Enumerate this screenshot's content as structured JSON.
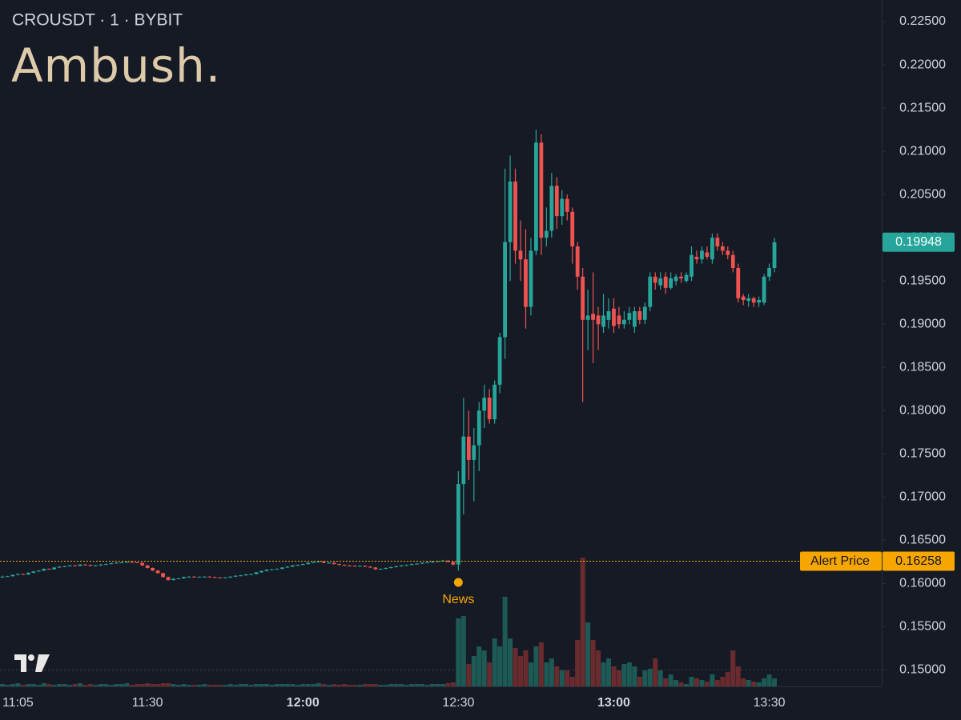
{
  "chart_data": {
    "type": "candlestick",
    "title": "CROUSDT · 1 · BYBIT",
    "subtitle": "Ambush.",
    "up_color": "#26a69a",
    "down_color": "#ef5350",
    "up_volume_color": "#1d5a56",
    "down_volume_color": "#6a2b2f",
    "ylim": [
      0.1475,
      0.2275
    ],
    "yticks": [
      {
        "value": 0.15,
        "label": "0.15000"
      },
      {
        "value": 0.155,
        "label": "0.15500"
      },
      {
        "value": 0.16,
        "label": "0.16000"
      },
      {
        "value": 0.165,
        "label": "0.16500"
      },
      {
        "value": 0.17,
        "label": "0.17000"
      },
      {
        "value": 0.175,
        "label": "0.17500"
      },
      {
        "value": 0.18,
        "label": "0.18000"
      },
      {
        "value": 0.185,
        "label": "0.18500"
      },
      {
        "value": 0.19,
        "label": "0.19000"
      },
      {
        "value": 0.195,
        "label": "0.19500"
      },
      {
        "value": 0.2,
        "label": "0.20000"
      },
      {
        "value": 0.205,
        "label": "0.20500"
      },
      {
        "value": 0.21,
        "label": "0.21000"
      },
      {
        "value": 0.215,
        "label": "0.21500"
      },
      {
        "value": 0.22,
        "label": "0.22000"
      },
      {
        "value": 0.225,
        "label": "0.22500"
      }
    ],
    "xticks": [
      "11:05",
      "11:30",
      "12:00",
      "12:30",
      "13:00",
      "13:30"
    ],
    "alert": {
      "label": "Alert Price",
      "value": 0.16258,
      "color": "#f7a600"
    },
    "news": {
      "label": "News",
      "x": "12:30",
      "color": "#f7a600"
    },
    "x": [
      "11:02",
      "11:03",
      "11:04",
      "11:05",
      "11:06",
      "11:07",
      "11:08",
      "11:09",
      "11:10",
      "11:11",
      "11:12",
      "11:13",
      "11:14",
      "11:15",
      "11:16",
      "11:17",
      "11:18",
      "11:19",
      "11:20",
      "11:21",
      "11:22",
      "11:23",
      "11:24",
      "11:25",
      "11:26",
      "11:27",
      "11:28",
      "11:29",
      "11:30",
      "11:31",
      "11:32",
      "11:33",
      "11:34",
      "11:35",
      "11:36",
      "11:37",
      "11:38",
      "11:39",
      "11:40",
      "11:41",
      "11:42",
      "11:43",
      "11:44",
      "11:45",
      "11:46",
      "11:47",
      "11:48",
      "11:49",
      "11:50",
      "11:51",
      "11:52",
      "11:53",
      "11:54",
      "11:55",
      "11:56",
      "11:57",
      "11:58",
      "11:59",
      "12:00",
      "12:01",
      "12:02",
      "12:03",
      "12:04",
      "12:05",
      "12:06",
      "12:07",
      "12:08",
      "12:09",
      "12:10",
      "12:11",
      "12:12",
      "12:13",
      "12:14",
      "12:15",
      "12:16",
      "12:17",
      "12:18",
      "12:19",
      "12:20",
      "12:21",
      "12:22",
      "12:23",
      "12:24",
      "12:25",
      "12:26",
      "12:27",
      "12:28",
      "12:29",
      "12:30",
      "12:31",
      "12:32",
      "12:33",
      "12:34",
      "12:35",
      "12:36",
      "12:37",
      "12:38",
      "12:39",
      "12:40",
      "12:41",
      "12:42",
      "12:43",
      "12:44",
      "12:45",
      "12:46",
      "12:47",
      "12:48",
      "12:49",
      "12:50",
      "12:51",
      "12:52",
      "12:53",
      "12:54",
      "12:55",
      "12:56",
      "12:57",
      "12:58",
      "12:59",
      "13:00",
      "13:01",
      "13:02",
      "13:03",
      "13:04",
      "13:05",
      "13:06",
      "13:07",
      "13:08",
      "13:09",
      "13:10",
      "13:11",
      "13:12",
      "13:13",
      "13:14",
      "13:15",
      "13:16",
      "13:17",
      "13:18",
      "13:19",
      "13:20",
      "13:21",
      "13:22",
      "13:23",
      "13:24",
      "13:25",
      "13:26",
      "13:27",
      "13:28",
      "13:29",
      "13:30",
      "13:31"
    ],
    "ohlc": [
      [
        0.16075,
        0.1609,
        0.1607,
        0.1608
      ],
      [
        0.1608,
        0.1609,
        0.16075,
        0.16085
      ],
      [
        0.16085,
        0.16105,
        0.1608,
        0.161
      ],
      [
        0.161,
        0.16115,
        0.16095,
        0.1611
      ],
      [
        0.1611,
        0.16115,
        0.161,
        0.16105
      ],
      [
        0.16105,
        0.1613,
        0.161,
        0.16125
      ],
      [
        0.16125,
        0.16145,
        0.1612,
        0.1614
      ],
      [
        0.1614,
        0.16155,
        0.16135,
        0.1615
      ],
      [
        0.1615,
        0.16175,
        0.16145,
        0.1617
      ],
      [
        0.1617,
        0.16175,
        0.1616,
        0.16165
      ],
      [
        0.16165,
        0.1619,
        0.1616,
        0.16185
      ],
      [
        0.16185,
        0.162,
        0.1618,
        0.16195
      ],
      [
        0.16195,
        0.16205,
        0.1619,
        0.162
      ],
      [
        0.162,
        0.16215,
        0.16195,
        0.1621
      ],
      [
        0.1621,
        0.16215,
        0.162,
        0.16205
      ],
      [
        0.16205,
        0.16225,
        0.162,
        0.1622
      ],
      [
        0.1622,
        0.16225,
        0.1621,
        0.16215
      ],
      [
        0.16215,
        0.1622,
        0.162,
        0.16205
      ],
      [
        0.16205,
        0.16215,
        0.162,
        0.1621
      ],
      [
        0.1621,
        0.16225,
        0.16205,
        0.1622
      ],
      [
        0.1622,
        0.1623,
        0.16215,
        0.16225
      ],
      [
        0.16225,
        0.1624,
        0.1622,
        0.16235
      ],
      [
        0.16235,
        0.16245,
        0.1623,
        0.1624
      ],
      [
        0.1624,
        0.1625,
        0.16235,
        0.16245
      ],
      [
        0.16245,
        0.16255,
        0.1624,
        0.1625
      ],
      [
        0.1625,
        0.16255,
        0.1624,
        0.16245
      ],
      [
        0.16245,
        0.1625,
        0.16235,
        0.1624
      ],
      [
        0.1624,
        0.16245,
        0.16205,
        0.1621
      ],
      [
        0.1621,
        0.16215,
        0.16175,
        0.1618
      ],
      [
        0.1618,
        0.16185,
        0.16145,
        0.1615
      ],
      [
        0.1615,
        0.16155,
        0.16115,
        0.1612
      ],
      [
        0.1612,
        0.16125,
        0.1607,
        0.16075
      ],
      [
        0.16075,
        0.1608,
        0.16035,
        0.1604
      ],
      [
        0.1604,
        0.1606,
        0.16035,
        0.16055
      ],
      [
        0.16055,
        0.16065,
        0.1605,
        0.1606
      ],
      [
        0.1606,
        0.1608,
        0.16055,
        0.16075
      ],
      [
        0.16075,
        0.16085,
        0.1607,
        0.1608
      ],
      [
        0.1608,
        0.16085,
        0.1607,
        0.16075
      ],
      [
        0.16075,
        0.16083,
        0.1607,
        0.16078
      ],
      [
        0.16078,
        0.16085,
        0.16073,
        0.1608
      ],
      [
        0.1608,
        0.16085,
        0.1607,
        0.16075
      ],
      [
        0.16075,
        0.1608,
        0.16065,
        0.1607
      ],
      [
        0.1607,
        0.16075,
        0.16063,
        0.16068
      ],
      [
        0.16068,
        0.16075,
        0.16063,
        0.1607
      ],
      [
        0.1607,
        0.16085,
        0.16065,
        0.1608
      ],
      [
        0.1608,
        0.16095,
        0.16075,
        0.1609
      ],
      [
        0.1609,
        0.161,
        0.16085,
        0.16095
      ],
      [
        0.16095,
        0.1611,
        0.1609,
        0.16105
      ],
      [
        0.16105,
        0.16115,
        0.161,
        0.1611
      ],
      [
        0.1611,
        0.16135,
        0.16105,
        0.1613
      ],
      [
        0.1613,
        0.1615,
        0.16125,
        0.16145
      ],
      [
        0.16145,
        0.16165,
        0.1614,
        0.1616
      ],
      [
        0.1616,
        0.1617,
        0.16155,
        0.16165
      ],
      [
        0.16165,
        0.16175,
        0.1616,
        0.1617
      ],
      [
        0.1617,
        0.1619,
        0.16165,
        0.16185
      ],
      [
        0.16185,
        0.162,
        0.1618,
        0.16195
      ],
      [
        0.16195,
        0.16215,
        0.1619,
        0.1621
      ],
      [
        0.1621,
        0.1622,
        0.16205,
        0.16215
      ],
      [
        0.16215,
        0.1623,
        0.1621,
        0.16225
      ],
      [
        0.16225,
        0.16245,
        0.1622,
        0.1624
      ],
      [
        0.1624,
        0.16255,
        0.16235,
        0.1625
      ],
      [
        0.1625,
        0.16265,
        0.16245,
        0.16255
      ],
      [
        0.16255,
        0.1626,
        0.16235,
        0.1624
      ],
      [
        0.1624,
        0.1625,
        0.16235,
        0.1624
      ],
      [
        0.1624,
        0.16245,
        0.1622,
        0.16225
      ],
      [
        0.16225,
        0.1623,
        0.1621,
        0.16215
      ],
      [
        0.16215,
        0.1622,
        0.16205,
        0.1621
      ],
      [
        0.1621,
        0.16215,
        0.162,
        0.16205
      ],
      [
        0.16205,
        0.1621,
        0.16195,
        0.162
      ],
      [
        0.162,
        0.1621,
        0.16195,
        0.16205
      ],
      [
        0.16205,
        0.1621,
        0.1619,
        0.16195
      ],
      [
        0.16195,
        0.162,
        0.1618,
        0.16185
      ],
      [
        0.16185,
        0.1619,
        0.1616,
        0.16165
      ],
      [
        0.16165,
        0.16175,
        0.1616,
        0.1617
      ],
      [
        0.1617,
        0.16185,
        0.16165,
        0.1618
      ],
      [
        0.1618,
        0.16195,
        0.16175,
        0.1619
      ],
      [
        0.1619,
        0.16205,
        0.16185,
        0.162
      ],
      [
        0.162,
        0.16215,
        0.16195,
        0.1621
      ],
      [
        0.1621,
        0.1622,
        0.16205,
        0.16215
      ],
      [
        0.16215,
        0.1623,
        0.1621,
        0.16225
      ],
      [
        0.16225,
        0.16235,
        0.1622,
        0.1623
      ],
      [
        0.1623,
        0.16245,
        0.16225,
        0.1624
      ],
      [
        0.1624,
        0.1625,
        0.16235,
        0.16245
      ],
      [
        0.16245,
        0.1626,
        0.1624,
        0.16255
      ],
      [
        0.16255,
        0.16265,
        0.1625,
        0.1626
      ],
      [
        0.1626,
        0.16275,
        0.16255,
        0.16265
      ],
      [
        0.16265,
        0.1627,
        0.16245,
        0.1625
      ],
      [
        0.1625,
        0.16255,
        0.1621,
        0.1622
      ],
      [
        0.1622,
        0.173,
        0.1615,
        0.1715
      ],
      [
        0.1715,
        0.1815,
        0.168,
        0.177
      ],
      [
        0.177,
        0.18,
        0.172,
        0.1743
      ],
      [
        0.1743,
        0.178,
        0.1695,
        0.176
      ],
      [
        0.176,
        0.181,
        0.173,
        0.18
      ],
      [
        0.18,
        0.183,
        0.178,
        0.1815
      ],
      [
        0.1815,
        0.1825,
        0.1785,
        0.179
      ],
      [
        0.179,
        0.1835,
        0.1785,
        0.183
      ],
      [
        0.183,
        0.189,
        0.182,
        0.1885
      ],
      [
        0.1885,
        0.208,
        0.186,
        0.1995
      ],
      [
        0.1995,
        0.2095,
        0.195,
        0.2065
      ],
      [
        0.2065,
        0.208,
        0.197,
        0.1985
      ],
      [
        0.1985,
        0.202,
        0.195,
        0.1975
      ],
      [
        0.1975,
        0.201,
        0.1895,
        0.192
      ],
      [
        0.192,
        0.2,
        0.191,
        0.1985
      ],
      [
        0.1985,
        0.2125,
        0.198,
        0.211
      ],
      [
        0.211,
        0.212,
        0.198,
        0.2
      ],
      [
        0.2,
        0.2035,
        0.199,
        0.2008
      ],
      [
        0.2008,
        0.2075,
        0.2,
        0.206
      ],
      [
        0.206,
        0.207,
        0.201,
        0.2025
      ],
      [
        0.2025,
        0.2055,
        0.2015,
        0.2045
      ],
      [
        0.2045,
        0.205,
        0.202,
        0.203
      ],
      [
        0.203,
        0.2035,
        0.197,
        0.199
      ],
      [
        0.199,
        0.1995,
        0.194,
        0.1955
      ],
      [
        0.1955,
        0.1965,
        0.181,
        0.1905
      ],
      [
        0.1905,
        0.194,
        0.187,
        0.191
      ],
      [
        0.1912,
        0.196,
        0.1855,
        0.1905
      ],
      [
        0.191,
        0.192,
        0.187,
        0.19
      ],
      [
        0.1897,
        0.1935,
        0.189,
        0.191
      ],
      [
        0.1905,
        0.193,
        0.1895,
        0.1915
      ],
      [
        0.1918,
        0.193,
        0.189,
        0.1898
      ],
      [
        0.191,
        0.192,
        0.1895,
        0.19
      ],
      [
        0.19,
        0.1915,
        0.1895,
        0.1905
      ],
      [
        0.1905,
        0.192,
        0.19,
        0.1913
      ],
      [
        0.1897,
        0.192,
        0.189,
        0.1915
      ],
      [
        0.1915,
        0.192,
        0.19,
        0.1905
      ],
      [
        0.1905,
        0.1925,
        0.19,
        0.192
      ],
      [
        0.192,
        0.196,
        0.1915,
        0.1955
      ],
      [
        0.1955,
        0.196,
        0.194,
        0.1948
      ],
      [
        0.1945,
        0.196,
        0.194,
        0.1953
      ],
      [
        0.1955,
        0.196,
        0.1935,
        0.1942
      ],
      [
        0.1942,
        0.196,
        0.194,
        0.1953
      ],
      [
        0.195,
        0.1958,
        0.1945,
        0.1955
      ],
      [
        0.1955,
        0.196,
        0.1948,
        0.1953
      ],
      [
        0.195,
        0.196,
        0.1948,
        0.1957
      ],
      [
        0.1955,
        0.199,
        0.195,
        0.198
      ],
      [
        0.1978,
        0.1985,
        0.197,
        0.1975
      ],
      [
        0.1975,
        0.199,
        0.197,
        0.1985
      ],
      [
        0.1983,
        0.199,
        0.1975,
        0.1978
      ],
      [
        0.1975,
        0.2005,
        0.197,
        0.2
      ],
      [
        0.2,
        0.2005,
        0.1985,
        0.199
      ],
      [
        0.199,
        0.1995,
        0.198,
        0.1985
      ],
      [
        0.1985,
        0.199,
        0.1975,
        0.198
      ],
      [
        0.198,
        0.1985,
        0.196,
        0.1965
      ],
      [
        0.1965,
        0.197,
        0.1925,
        0.193
      ],
      [
        0.1932,
        0.1935,
        0.1922,
        0.1928
      ],
      [
        0.1927,
        0.1935,
        0.192,
        0.193
      ],
      [
        0.193,
        0.1932,
        0.192,
        0.1925
      ],
      [
        0.1925,
        0.1932,
        0.192,
        0.1928
      ],
      [
        0.1925,
        0.1958,
        0.1922,
        0.1955
      ],
      [
        0.1955,
        0.197,
        0.195,
        0.1965
      ],
      [
        0.1965,
        0.2,
        0.196,
        0.19948
      ]
    ],
    "volume": [
      3,
      2,
      3,
      4,
      2,
      3,
      3,
      2,
      4,
      3,
      2,
      3,
      3,
      2,
      3,
      4,
      2,
      3,
      2,
      3,
      3,
      2,
      3,
      3,
      4,
      2,
      3,
      3,
      4,
      3,
      3,
      4,
      4,
      3,
      2,
      3,
      2,
      2,
      2,
      3,
      2,
      2,
      2,
      2,
      3,
      2,
      3,
      3,
      2,
      3,
      3,
      3,
      2,
      3,
      3,
      3,
      3,
      2,
      3,
      3,
      3,
      4,
      3,
      2,
      3,
      2,
      3,
      2,
      2,
      2,
      3,
      3,
      3,
      2,
      2,
      3,
      3,
      3,
      2,
      3,
      3,
      3,
      2,
      3,
      3,
      3,
      4,
      5,
      85,
      88,
      28,
      38,
      50,
      45,
      30,
      60,
      50,
      112,
      60,
      48,
      38,
      45,
      30,
      50,
      55,
      30,
      35,
      25,
      20,
      20,
      12,
      58,
      161,
      80,
      58,
      45,
      30,
      35,
      25,
      20,
      28,
      30,
      25,
      12,
      20,
      22,
      35,
      20,
      10,
      15,
      8,
      5,
      3,
      12,
      10,
      8,
      6,
      15,
      8,
      12,
      18,
      45,
      25,
      10,
      8,
      6,
      5,
      10,
      15,
      10
    ]
  }
}
